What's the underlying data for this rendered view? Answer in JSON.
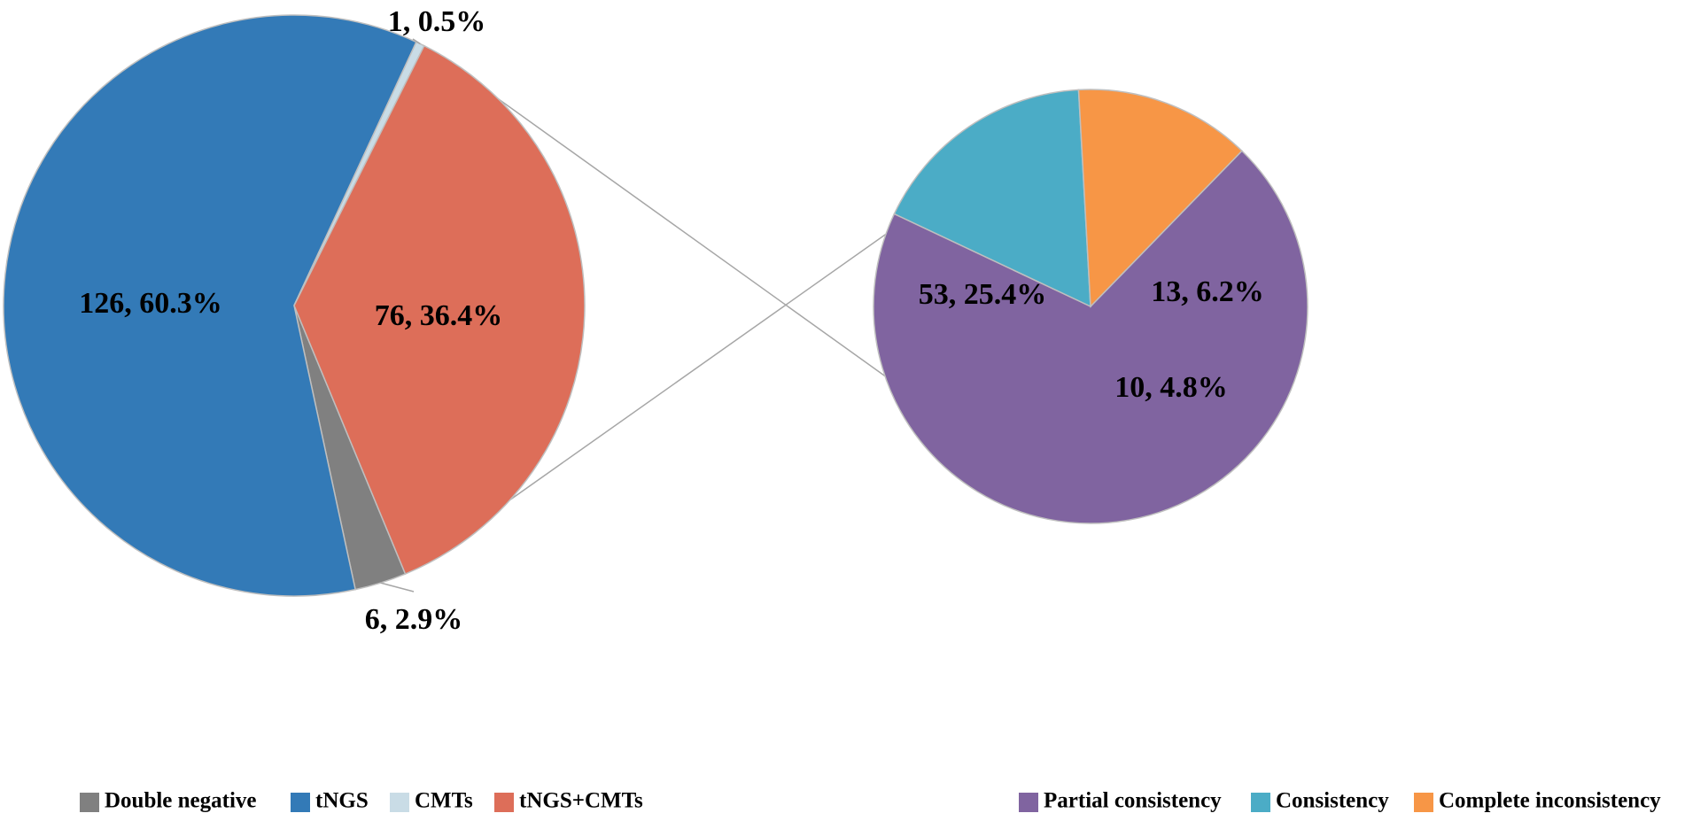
{
  "chart_data": [
    {
      "type": "pie",
      "slices": [
        {
          "name": "Double negative",
          "value": 6,
          "percent": 2.9,
          "color": "#808080",
          "label": "6, 2.9%"
        },
        {
          "name": "tNGS",
          "value": 126,
          "percent": 60.3,
          "color": "#337AB7",
          "label": "126, 60.3%"
        },
        {
          "name": "CMTs",
          "value": 1,
          "percent": 0.5,
          "color": "#C9DCE6",
          "label": "1, 0.5%"
        },
        {
          "name": "tNGS+CMTs",
          "value": 76,
          "percent": 36.4,
          "color": "#DD6E59",
          "label": "76, 36.4%"
        }
      ],
      "legend": [
        "Double negative",
        "tNGS",
        "CMTs",
        "tNGS+CMTs"
      ],
      "legend_position": "bottom-left"
    },
    {
      "type": "pie",
      "breakdown_of": "tNGS+CMTs",
      "slices": [
        {
          "name": "Partial consistency",
          "value": 53,
          "percent": 25.4,
          "color": "#8064A0",
          "label": "53, 25.4%"
        },
        {
          "name": "Consistency",
          "value": 13,
          "percent": 6.2,
          "color": "#4BACC6",
          "label": "13, 6.2%"
        },
        {
          "name": "Complete inconsistency",
          "value": 10,
          "percent": 4.8,
          "color": "#F79646",
          "label": "10, 4.8%"
        }
      ],
      "legend": [
        "Partial consistency",
        "Consistency",
        "Complete inconsistency"
      ],
      "legend_position": "bottom-right"
    }
  ]
}
